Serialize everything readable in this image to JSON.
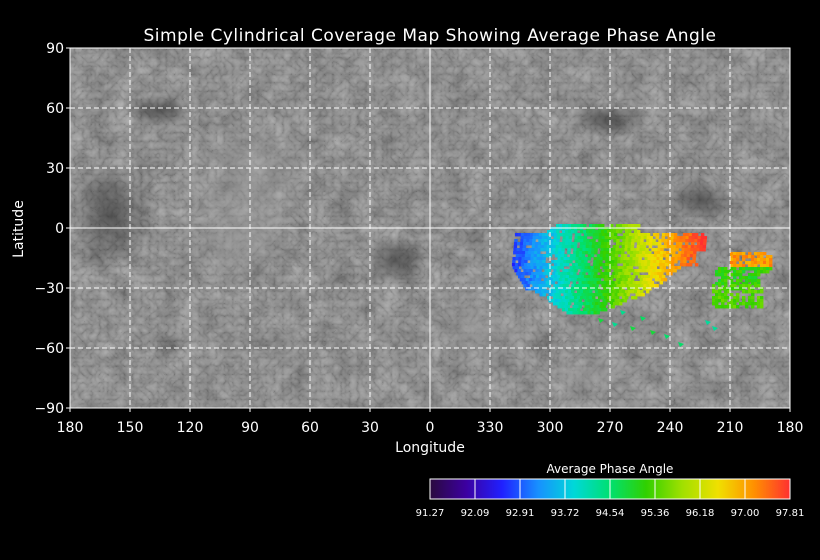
{
  "map": {
    "title": "Simple Cylindrical Coverage Map Showing Average Phase Angle",
    "xlabel": "Longitude",
    "ylabel": "Latitude",
    "x_ticks": [
      "180",
      "150",
      "120",
      "90",
      "60",
      "30",
      "0",
      "330",
      "300",
      "270",
      "240",
      "210",
      "180"
    ],
    "y_ticks": [
      "90",
      "60",
      "30",
      "0",
      "−30",
      "−60",
      "−90"
    ],
    "lat_range": [
      -90,
      90
    ],
    "grid": "dashed-white",
    "basemap": "grayscale planetary mosaic"
  },
  "colorbar": {
    "title": "Average Phase Angle",
    "ticks": [
      "91.27",
      "92.09",
      "92.91",
      "93.72",
      "94.54",
      "95.36",
      "96.18",
      "97.00",
      "97.81"
    ],
    "colors": [
      "#2a0a3e",
      "#3c00a0",
      "#2020ff",
      "#1890ff",
      "#00d8d8",
      "#00e070",
      "#30d000",
      "#a0e000",
      "#f0e000",
      "#ff9000",
      "#ff3030"
    ]
  }
}
